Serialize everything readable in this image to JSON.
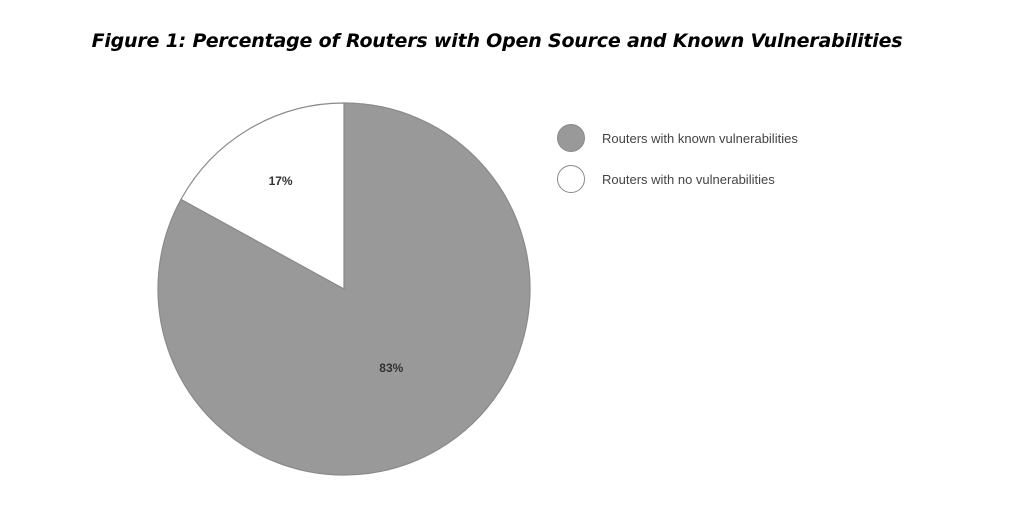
{
  "figure": {
    "title": "Figure 1: Percentage of Routers with Open Source and Known Vulnerabilities"
  },
  "chart_data": {
    "type": "pie",
    "title": "Figure 1: Percentage of Routers with Open Source and Known Vulnerabilities",
    "categories": [
      "Routers with known vulnerabilities",
      "Routers with no vulnerabilities"
    ],
    "values": [
      83,
      17
    ],
    "data_labels": [
      "83%",
      "17%"
    ],
    "colors": [
      "#999999",
      "#ffffff"
    ],
    "outline_color": "#8a8a8a",
    "legend_position": "right"
  }
}
